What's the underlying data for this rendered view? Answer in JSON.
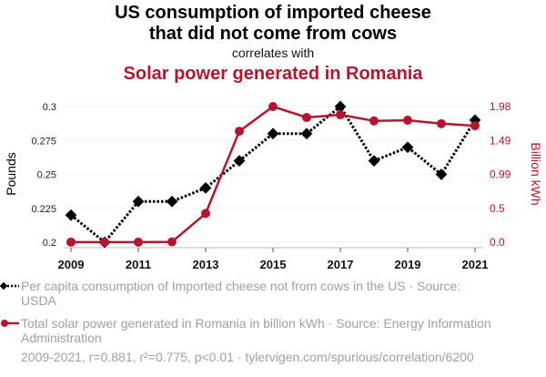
{
  "header": {
    "title": "US consumption of imported cheese that did not come from cows",
    "title_line1": "US consumption of imported cheese",
    "title_line2": "that did not come from cows",
    "subtitle": "correlates with",
    "title2": "Solar power generated in Romania"
  },
  "legend": {
    "items": [
      {
        "label": "Per capita consumption of Imported cheese not from cows in the US · Source: USDA",
        "color": "#000000",
        "marker": "diamond",
        "line": "dotted"
      },
      {
        "label": "Total solar power generated in Romania in billion kWh · Source: Energy Information Administration",
        "color": "#b5162f",
        "marker": "circle",
        "line": "solid"
      }
    ]
  },
  "footer": {
    "text": "2009-2021, r=0.881, r²=0.775, p<0.01 · tylervigen.com/spurious/correlation/6200"
  },
  "chart_data": {
    "type": "line",
    "title": "US consumption of imported cheese that did not come from cows correlates with Solar power generated in Romania",
    "x": [
      2009,
      2010,
      2011,
      2012,
      2013,
      2014,
      2015,
      2016,
      2017,
      2018,
      2019,
      2020,
      2021
    ],
    "x_ticks": [
      "2009",
      "2011",
      "2013",
      "2015",
      "2017",
      "2019",
      "2021"
    ],
    "x_tick_values": [
      2009,
      2011,
      2013,
      2015,
      2017,
      2019,
      2021
    ],
    "xlim": [
      2009,
      2021
    ],
    "series": [
      {
        "name": "Per capita consumption of Imported cheese not from cows in the US",
        "axis": "left",
        "color": "#000000",
        "values": [
          0.22,
          0.2,
          0.23,
          0.23,
          0.24,
          0.26,
          0.28,
          0.28,
          0.3,
          0.26,
          0.27,
          0.25,
          0.29
        ]
      },
      {
        "name": "Total solar power generated in Romania in billion kWh",
        "axis": "right",
        "color": "#b5162f",
        "values": [
          0.001,
          0.001,
          0.001,
          0.005,
          0.42,
          1.62,
          1.98,
          1.82,
          1.86,
          1.77,
          1.78,
          1.73,
          1.7
        ]
      }
    ],
    "y_left": {
      "label": "Pounds",
      "ylim": [
        0.2,
        0.3
      ],
      "ticks": [
        0.2,
        0.225,
        0.25,
        0.275,
        0.3
      ],
      "tick_labels": [
        "0.2",
        "0.225",
        "0.25",
        "0.275",
        "0.3"
      ]
    },
    "y_right": {
      "label": "Billion kWh",
      "ylim": [
        0.0,
        1.98
      ],
      "ticks": [
        0.0,
        0.495,
        0.99,
        1.485,
        1.98
      ],
      "tick_labels": [
        "0.0",
        "0.5",
        "0.99",
        "1.49",
        "1.98"
      ]
    },
    "grid": true,
    "legend_position": "bottom-left"
  }
}
